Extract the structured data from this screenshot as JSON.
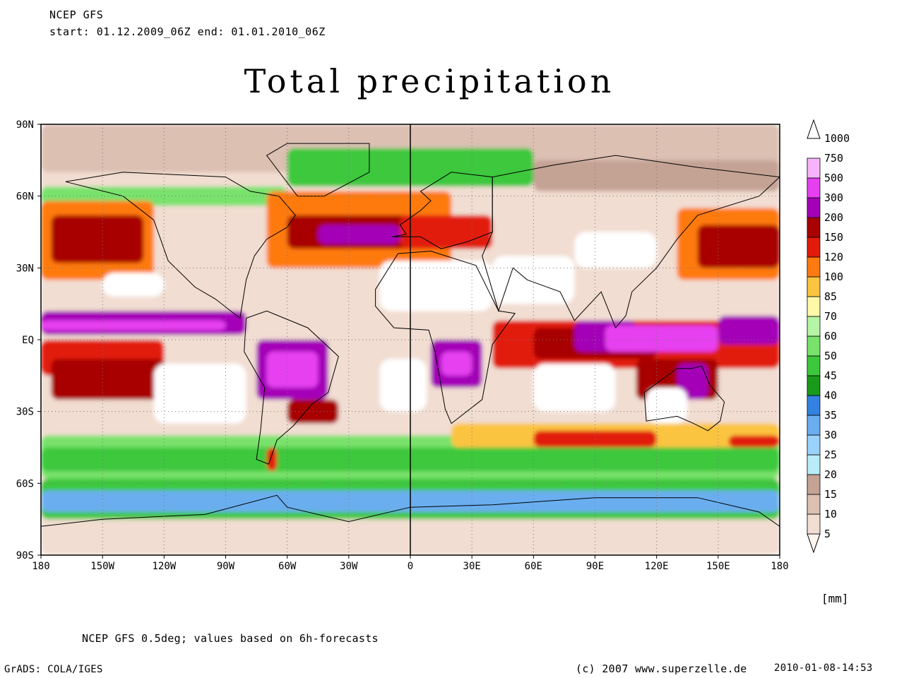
{
  "header": {
    "line1": "NCEP GFS",
    "line2": "start: 01.12.2009_06Z    end: 01.01.2010_06Z"
  },
  "title": "Total precipitation",
  "map": {
    "projection": "equirectangular",
    "lat_ticks": [
      "90N",
      "60N",
      "30N",
      "EQ",
      "30S",
      "60S",
      "90S"
    ],
    "lon_ticks": [
      "180",
      "150W",
      "120W",
      "90W",
      "60W",
      "30W",
      "0",
      "30E",
      "60E",
      "90E",
      "120E",
      "150E",
      "180"
    ],
    "grid_lines": "dotted",
    "prime_meridian_line": true
  },
  "colorbar": {
    "levels": [
      "5",
      "10",
      "15",
      "20",
      "25",
      "30",
      "35",
      "40",
      "45",
      "50",
      "60",
      "70",
      "85",
      "100",
      "120",
      "150",
      "200",
      "300",
      "500",
      "750",
      "1000"
    ],
    "colors": [
      "#fff4ee",
      "#f1ddd1",
      "#dcc0b2",
      "#c4a394",
      "#b8ecf8",
      "#99d2fb",
      "#6aaeef",
      "#3381e0",
      "#1a9a1a",
      "#3cc83c",
      "#79e26c",
      "#b5f5a6",
      "#fdf9a8",
      "#fbc440",
      "#ff7a10",
      "#e21b0c",
      "#a80202",
      "#a400b8",
      "#e640f0",
      "#f7b4fa",
      "#ffffff"
    ],
    "unit": "[mm]"
  },
  "footer": {
    "note": "NCEP GFS 0.5deg; values based on 6h-forecasts",
    "grads": "GrADS: COLA/IGES",
    "copyright": "(c) 2007 www.superzelle.de",
    "timestamp": "2010-01-08-14:53"
  }
}
